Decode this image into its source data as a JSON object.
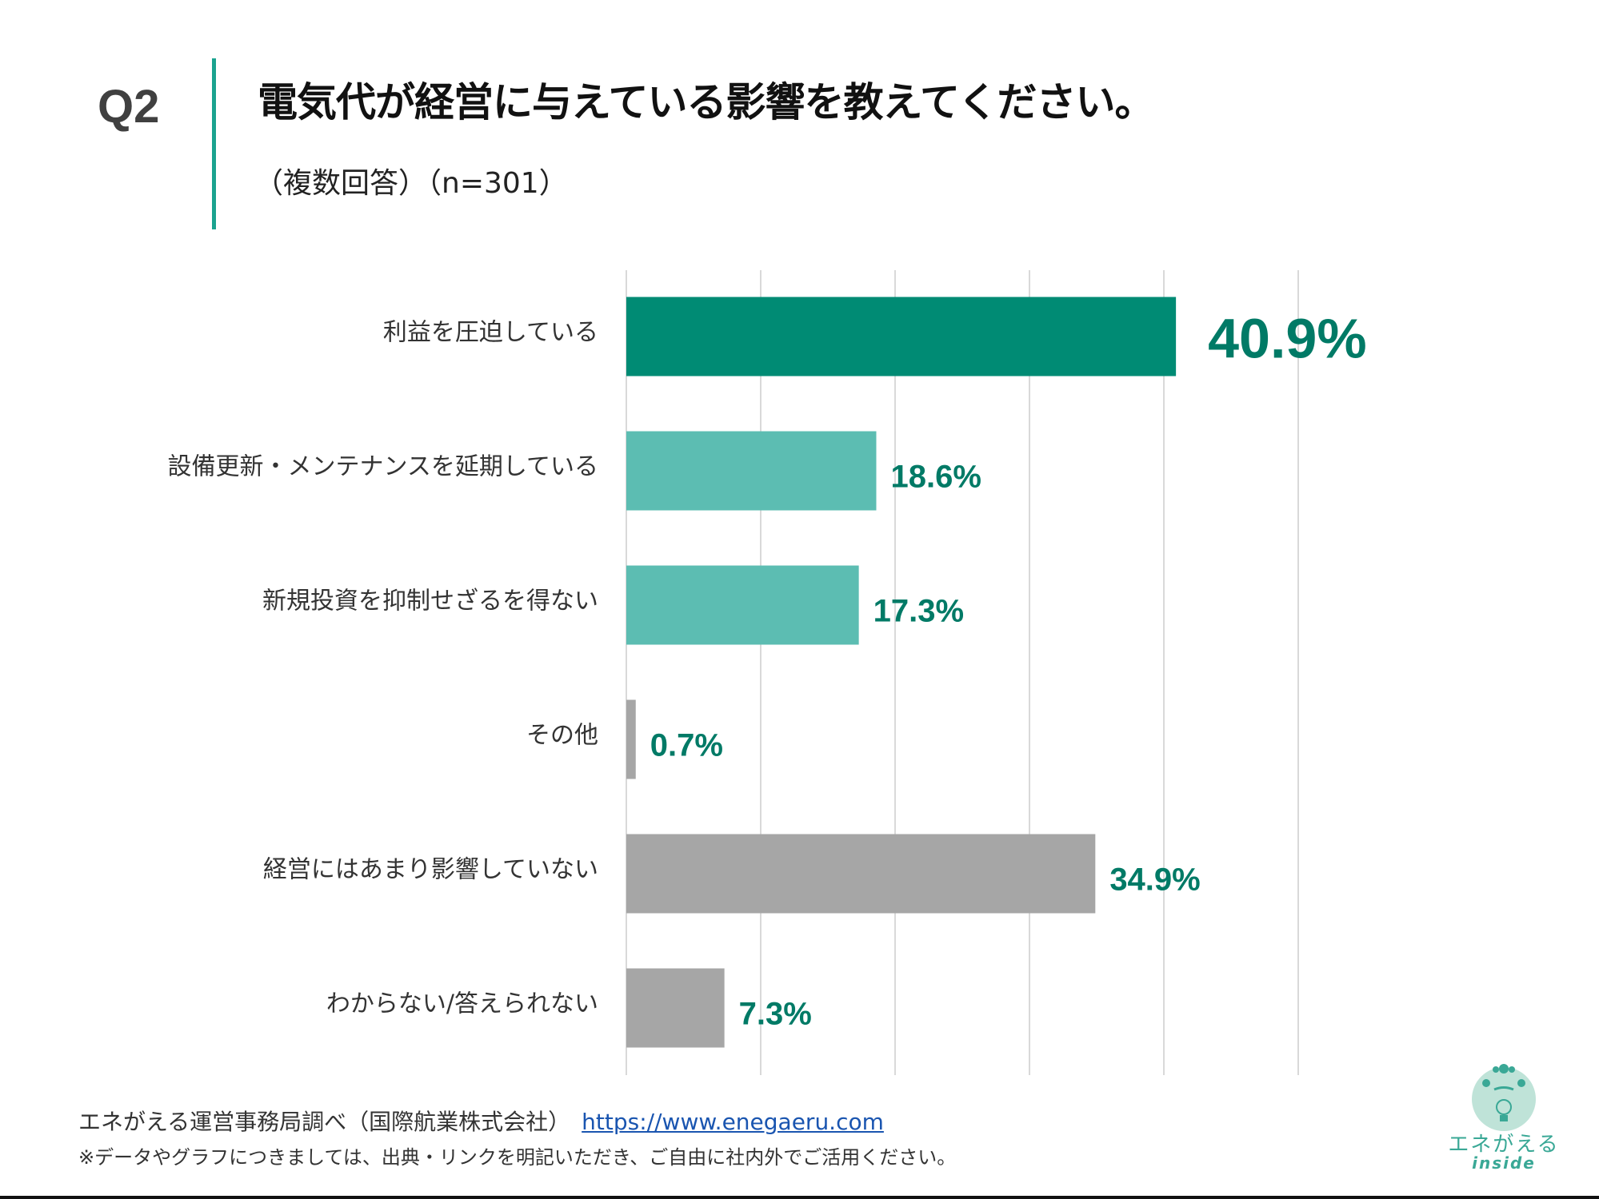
{
  "header": {
    "question_no": "Q2",
    "title": "電気代が経営に与えている影響を教えてください。",
    "subtitle": "（複数回答）（n=301）"
  },
  "chart_data": {
    "type": "bar",
    "orientation": "horizontal",
    "categories": [
      "利益を圧迫している",
      "設備更新・メンテナンスを延期している",
      "新規投資を抑制せざるを得ない",
      "その他",
      "経営にはあまり影響していない",
      "わからない/答えられない"
    ],
    "values": [
      40.9,
      18.6,
      17.3,
      0.7,
      34.9,
      7.3
    ],
    "value_labels": [
      "40.9%",
      "18.6%",
      "17.3%",
      "0.7%",
      "34.9%",
      "7.3%"
    ],
    "unit": "%",
    "xlim": [
      0,
      50
    ],
    "grid": true,
    "bar_colors": [
      "#008b74",
      "#5cbdb2",
      "#5cbdb2",
      "#a6a6a6",
      "#a6a6a6",
      "#a6a6a6"
    ],
    "label_color": "#007a66"
  },
  "footer": {
    "source": "エネがえる運営事務局調べ（国際航業株式会社）",
    "link": "https://www.enegaeru.com",
    "note": "※データやグラフにつきましては、出典・リンクを明記いただき、ご自由に社内外でご活用ください。"
  },
  "logo": {
    "text": "エネがえる",
    "sub": "inside"
  },
  "colors": {
    "accent": "#1aa38f"
  }
}
